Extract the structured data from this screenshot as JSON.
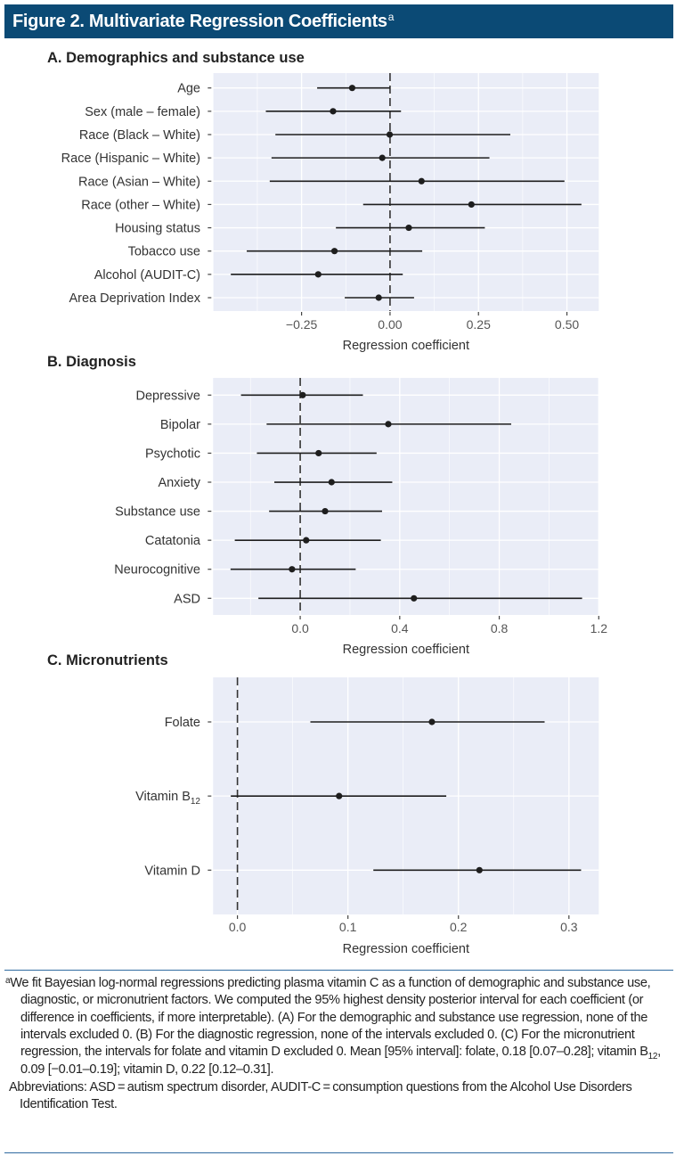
{
  "figure": {
    "title": "Figure 2. Multivariate Regression Coefficients",
    "title_footnote_marker": "a",
    "header_color": "#0b4a75"
  },
  "chart_data": [
    {
      "type": "scatter",
      "subtype": "forest-plot",
      "panel": "A",
      "title": "A. Demographics and substance use",
      "xlabel": "Regression coefficient",
      "ylabel": "",
      "xlim": [
        -0.5,
        0.59
      ],
      "xticks": [
        -0.25,
        0.0,
        0.25,
        0.5
      ],
      "xtick_labels": [
        "−0.25",
        "0.00",
        "0.25",
        "0.50"
      ],
      "reference_line": 0,
      "grid": true,
      "categories": [
        "Age",
        "Sex (male – female)",
        "Race (Black – White)",
        "Race (Hispanic – White)",
        "Race (Asian – White)",
        "Race (other – White)",
        "Housing status",
        "Tobacco use",
        "Alcohol (AUDIT-C)",
        "Area Deprivation Index"
      ],
      "estimates": [
        -0.107,
        -0.161,
        -0.001,
        -0.022,
        0.089,
        0.23,
        0.053,
        -0.157,
        -0.203,
        -0.032
      ],
      "lower": [
        -0.206,
        -0.351,
        -0.324,
        -0.335,
        -0.34,
        -0.076,
        -0.153,
        -0.405,
        -0.45,
        -0.128
      ],
      "upper": [
        0.0,
        0.031,
        0.34,
        0.281,
        0.493,
        0.541,
        0.268,
        0.091,
        0.036,
        0.068
      ]
    },
    {
      "type": "scatter",
      "subtype": "forest-plot",
      "panel": "B",
      "title": "B. Diagnosis",
      "xlabel": "Regression coefficient",
      "ylabel": "",
      "xlim": [
        -0.35,
        1.2
      ],
      "xticks": [
        0.0,
        0.4,
        0.8,
        1.2
      ],
      "xtick_labels": [
        "0.0",
        "0.4",
        "0.8",
        "1.2"
      ],
      "reference_line": 0,
      "grid": true,
      "categories": [
        "Depressive",
        "Bipolar",
        "Psychotic",
        "Anxiety",
        "Substance use",
        "Catatonia",
        "Neurocognitive",
        "ASD"
      ],
      "estimates": [
        0.01,
        0.354,
        0.074,
        0.126,
        0.1,
        0.024,
        -0.033,
        0.457
      ],
      "lower": [
        -0.238,
        -0.135,
        -0.174,
        -0.104,
        -0.125,
        -0.263,
        -0.28,
        -0.168
      ],
      "upper": [
        0.252,
        0.848,
        0.307,
        0.37,
        0.329,
        0.324,
        0.223,
        1.133
      ]
    },
    {
      "type": "scatter",
      "subtype": "forest-plot",
      "panel": "C",
      "title": "C. Micronutrients",
      "xlabel": "Regression coefficient",
      "ylabel": "",
      "xlim": [
        -0.022,
        0.327
      ],
      "xticks": [
        0.0,
        0.1,
        0.2,
        0.3
      ],
      "xtick_labels": [
        "0.0",
        "0.1",
        "0.2",
        "0.3"
      ],
      "reference_line": 0,
      "grid": true,
      "categories": [
        "Folate",
        "Vitamin B",
        "Vitamin D"
      ],
      "category_subscripts": [
        "",
        "12",
        ""
      ],
      "estimates": [
        0.176,
        0.092,
        0.219
      ],
      "lower": [
        0.066,
        -0.006,
        0.123
      ],
      "upper": [
        0.278,
        0.189,
        0.311
      ]
    }
  ],
  "caption": {
    "footnote_marker": "a",
    "footnote_text_1": "We fit Bayesian log-normal regressions predicting plasma vitamin C as a function of demographic and substance use, diagnostic, or micronutrient factors. We computed the 95% highest density posterior interval for each coefficient (or difference in coefficients, if more interpretable). (A) For the demographic and substance use regression, none of the intervals excluded 0. (B) For the diagnostic regression, none of the intervals excluded 0. (C) For the micronutrient regression, the intervals for folate and vitamin D excluded 0. Mean [95% interval]: folate, 0.18 [0.07–0.28]; vitamin B",
    "footnote_sub": "12",
    "footnote_text_2": ", 0.09 [−0.01–0.19]; vitamin D, 0.22 [0.12–0.31].",
    "abbreviations": "Abbreviations: ASD = autism spectrum disorder, AUDIT-C = consumption questions from the Alcohol Use Disorders Identification Test."
  },
  "colors": {
    "panel_background": "#eaedf7",
    "grid": "#ffffff",
    "mark": "#1e1e1e",
    "divider": "#2f6aa0"
  }
}
